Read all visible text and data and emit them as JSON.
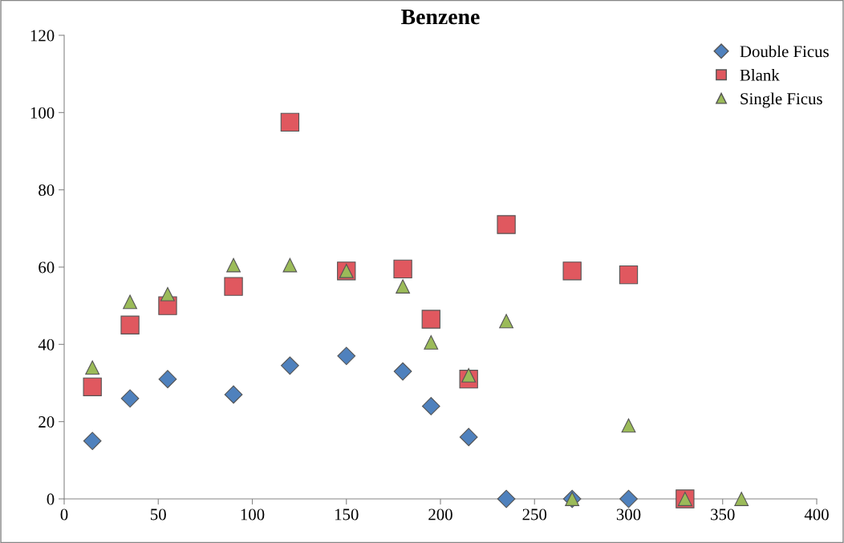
{
  "chart_data": {
    "type": "scatter",
    "title": "Benzene",
    "xlim": [
      0,
      400
    ],
    "xticks": [
      0,
      50,
      100,
      150,
      200,
      250,
      300,
      350,
      400
    ],
    "ylim": [
      0,
      120
    ],
    "yticks": [
      0,
      20,
      40,
      60,
      80,
      100,
      120
    ],
    "grid": false,
    "legend": "top right",
    "series": [
      {
        "name": "Double Ficus",
        "color": "#4f81bd",
        "marker": "diamond",
        "x": [
          15,
          35,
          55,
          90,
          120,
          150,
          180,
          195,
          215,
          235,
          270,
          300
        ],
        "values": [
          15,
          26,
          31,
          27,
          34.5,
          37,
          33,
          24,
          16,
          0,
          0,
          0
        ]
      },
      {
        "name": "Blank",
        "color": "#e0585f",
        "marker": "square",
        "x": [
          15,
          35,
          55,
          90,
          120,
          150,
          180,
          195,
          215,
          235,
          270,
          300,
          330
        ],
        "values": [
          29,
          45,
          50,
          55,
          97.5,
          59,
          59.5,
          46.5,
          31,
          71,
          59,
          58,
          0
        ]
      },
      {
        "name": "Single Ficus",
        "color": "#9bbb59",
        "marker": "triangle",
        "x": [
          15,
          35,
          55,
          90,
          120,
          150,
          180,
          195,
          215,
          235,
          270,
          300,
          330,
          360
        ],
        "values": [
          34,
          51,
          53,
          60.5,
          60.5,
          59,
          55,
          40.5,
          32,
          46,
          0,
          19,
          0,
          0
        ]
      }
    ]
  }
}
